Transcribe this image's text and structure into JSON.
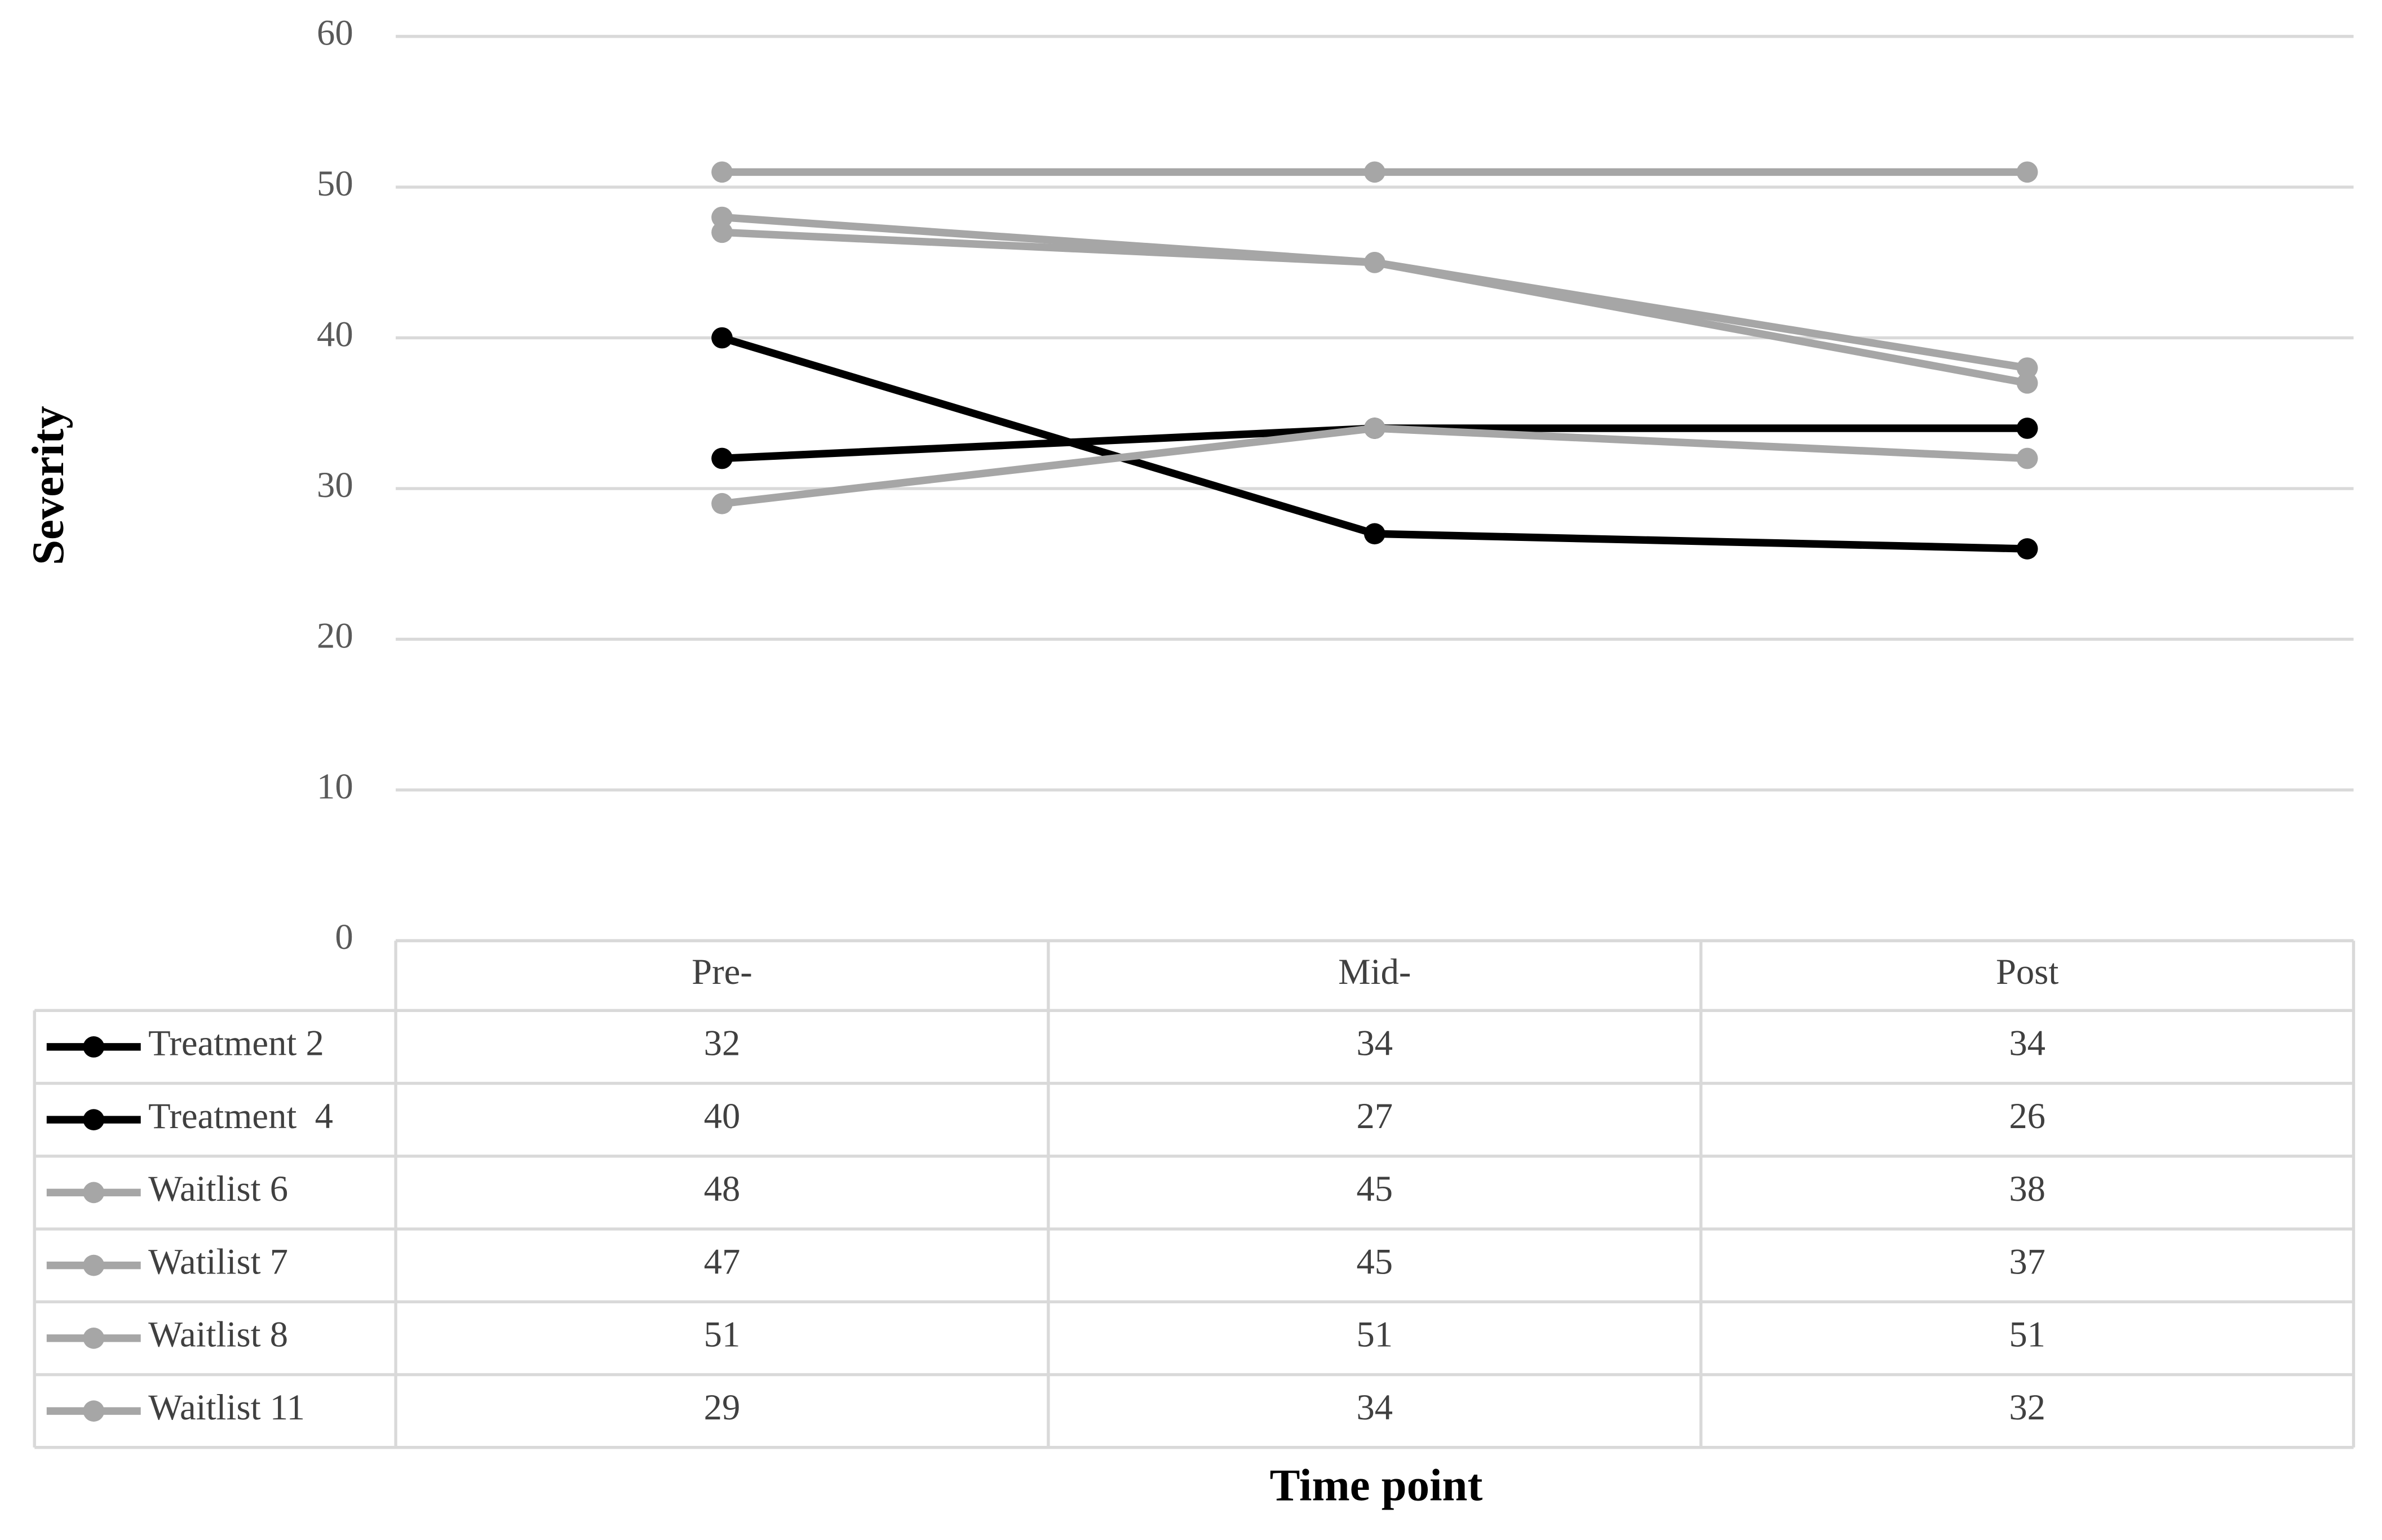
{
  "chart_data": {
    "type": "line",
    "x_label": "Time point",
    "y_label": "Severity",
    "categories": [
      "Pre-",
      "Mid-",
      "Post"
    ],
    "series": [
      {
        "name": "Treatment 2",
        "color": "#000000",
        "values": [
          32,
          34,
          34
        ]
      },
      {
        "name": "Treatment  4",
        "color": "#000000",
        "values": [
          40,
          27,
          26
        ]
      },
      {
        "name": "Waitlist 6",
        "color": "#a6a6a6",
        "values": [
          48,
          45,
          38
        ]
      },
      {
        "name": "Watilist 7",
        "color": "#a6a6a6",
        "values": [
          47,
          45,
          37
        ]
      },
      {
        "name": "Waitlist 8",
        "color": "#a6a6a6",
        "values": [
          51,
          51,
          51
        ]
      },
      {
        "name": "Waitlist 11",
        "color": "#a6a6a6",
        "values": [
          29,
          34,
          32
        ]
      }
    ],
    "ylim": [
      0,
      60
    ],
    "yticks": [
      0,
      10,
      20,
      30,
      40,
      50,
      60
    ],
    "grid": true,
    "data_table": true
  }
}
